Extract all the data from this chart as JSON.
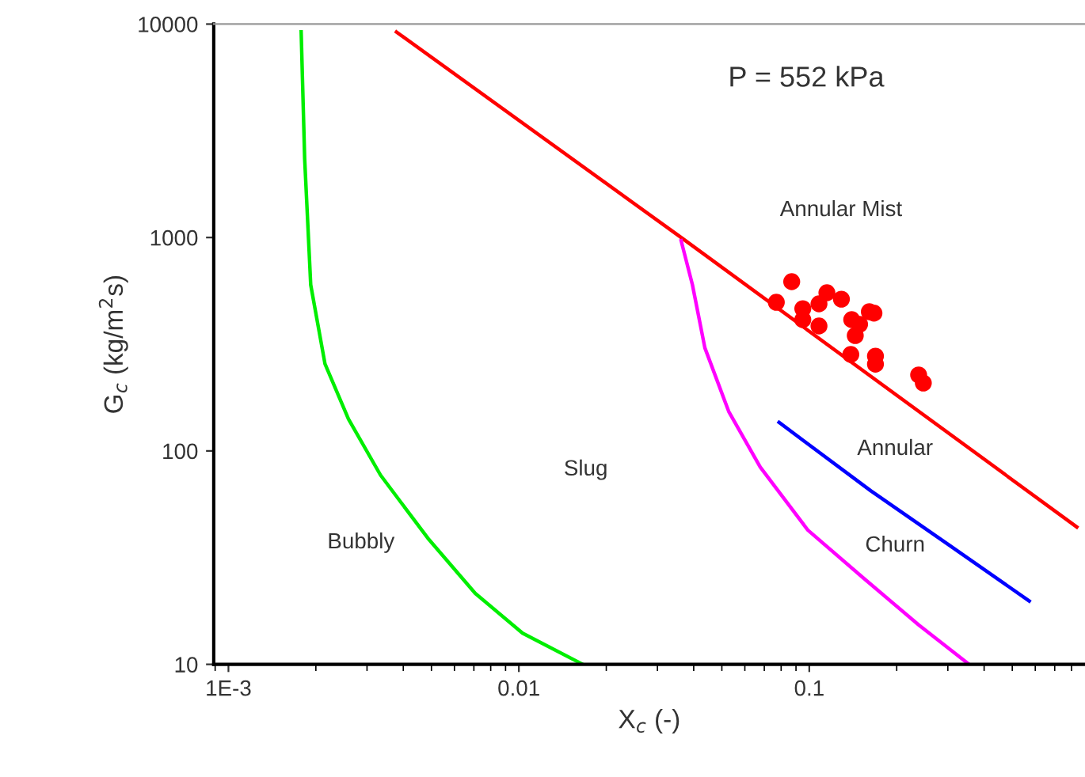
{
  "chart_data": {
    "type": "line",
    "xlabel": "X$_{c}$ (-)",
    "ylabel": "G$_{c}$ (kg/m$^{2}$s)",
    "log": "xy",
    "xlim": [
      0.00089,
      0.89
    ],
    "ylim": [
      10,
      10000
    ],
    "xticks": [
      {
        "value": 0.001,
        "label": "1E-3"
      },
      0.01,
      0.1
    ],
    "yticks": [
      10,
      100,
      1000,
      10000
    ],
    "grid": false,
    "legend": false,
    "annotations": [
      "P = 552 kPa",
      "Annular Mist",
      "Annular",
      "Churn",
      "Slug",
      "Bubbly"
    ],
    "series": [
      {
        "color": "#ff0000",
        "x": [
          0.00379,
          0.0362,
          0.834
        ],
        "values": [
          9180,
          1000,
          44
        ]
      },
      {
        "color": "#00ee00",
        "x": [
          0.00178,
          0.00183,
          0.00192,
          0.00215,
          0.00259,
          0.00334,
          0.00486,
          0.00708,
          0.0103,
          0.0166
        ],
        "values": [
          9200,
          2340,
          600,
          256,
          141,
          77,
          39,
          21.5,
          14,
          10
        ]
      },
      {
        "color": "#ff00ff",
        "x": [
          0.0362,
          0.0396,
          0.0437,
          0.0528,
          0.0678,
          0.0988,
          0.153,
          0.238,
          0.355
        ],
        "values": [
          966,
          600,
          304,
          153,
          84,
          42.6,
          25.5,
          15.3,
          10
        ]
      },
      {
        "color": "#0000ff",
        "x": [
          0.0787,
          0.163,
          0.305,
          0.572
        ],
        "values": [
          136,
          65,
          36,
          19.8
        ]
      },
      {
        "type": "scatter",
        "color": "#ff0000",
        "marker": "circle",
        "x": [
          0.087,
          0.077,
          0.095,
          0.108,
          0.115,
          0.129,
          0.095,
          0.108,
          0.14,
          0.144,
          0.161,
          0.167,
          0.139,
          0.169,
          0.169,
          0.238,
          0.247,
          0.149
        ],
        "values": [
          621,
          497,
          464,
          489,
          551,
          514,
          412,
          385,
          412,
          347,
          449,
          442,
          283,
          278,
          255,
          227,
          208,
          392
        ]
      }
    ]
  }
}
